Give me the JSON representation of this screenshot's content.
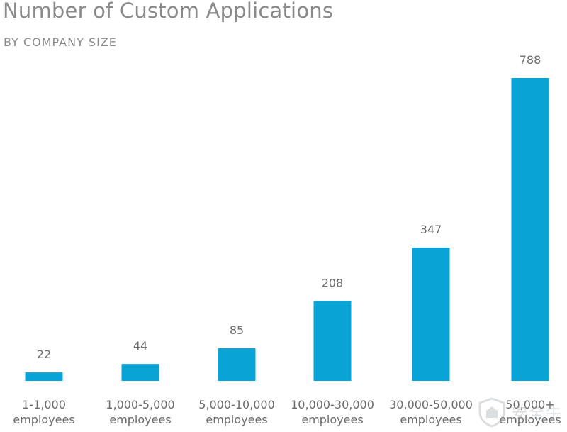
{
  "chart_data": {
    "type": "bar",
    "title": "Number of Custom Applications",
    "subtitle": "BY COMPANY SIZE",
    "xlabel": "",
    "ylabel": "",
    "ylim": [
      0,
      820
    ],
    "grid": false,
    "legend": "none",
    "categories": [
      [
        "1-1,000",
        "employees"
      ],
      [
        "1,000-5,000",
        "employees"
      ],
      [
        "5,000-10,000",
        "employees"
      ],
      [
        "10,000-30,000",
        "employees"
      ],
      [
        "30,000-50,000",
        "employees"
      ],
      [
        "50,000+",
        "employees"
      ]
    ],
    "values": [
      22,
      44,
      85,
      208,
      347,
      788
    ],
    "bar_color": "#0aa3d6",
    "text_color": "#6b6b6b"
  },
  "watermark": {
    "text": "安全牛"
  }
}
